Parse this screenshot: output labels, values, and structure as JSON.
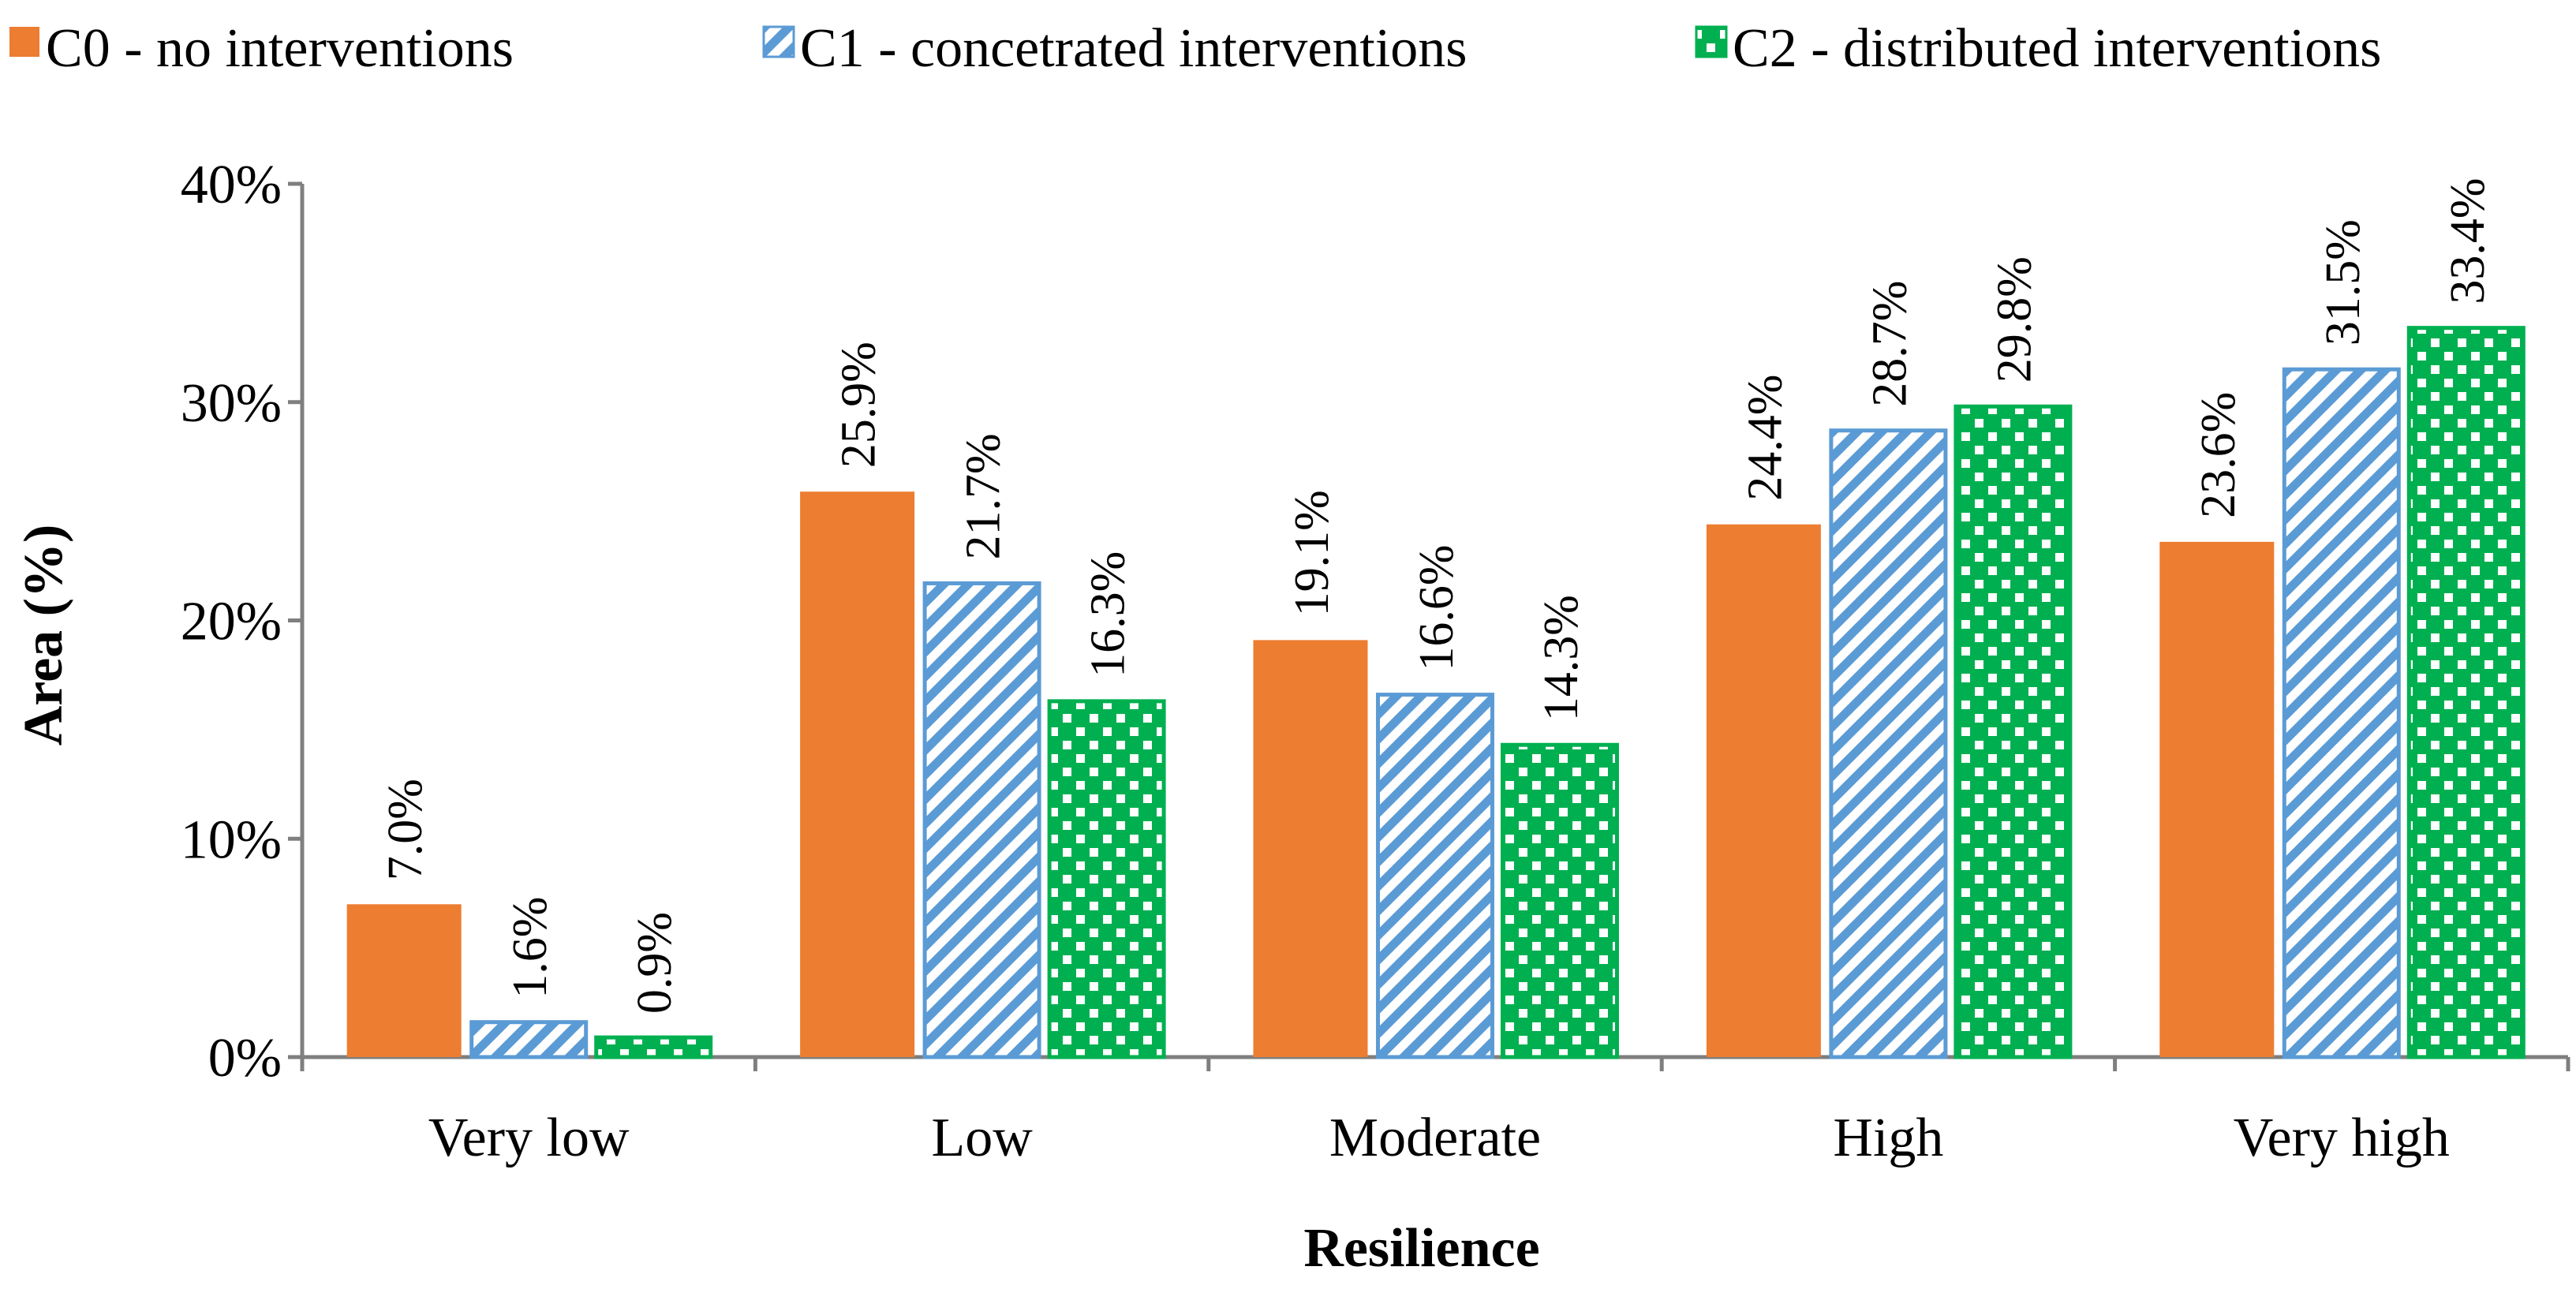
{
  "chart_data": {
    "type": "bar",
    "title": "",
    "xlabel": "Resilience",
    "ylabel": "Area (%)",
    "ylim": [
      0,
      40
    ],
    "yticks": [
      "0%",
      "10%",
      "20%",
      "30%",
      "40%"
    ],
    "grid": false,
    "legend_position": "top",
    "categories": [
      "Very low",
      "Low",
      "Moderate",
      "High",
      "Very high"
    ],
    "series": [
      {
        "name": "C0 - no interventions",
        "pattern": "solid",
        "color": "#ed7d31",
        "values": [
          7.0,
          25.9,
          19.1,
          24.4,
          23.6
        ],
        "labels": [
          "7.0%",
          "25.9%",
          "19.1%",
          "24.4%",
          "23.6%"
        ]
      },
      {
        "name": "C1 - concetrated interventions",
        "pattern": "diagonal-stripes",
        "color": "#5b9bd5",
        "values": [
          1.6,
          21.7,
          16.6,
          28.7,
          31.5
        ],
        "labels": [
          "1.6%",
          "21.7%",
          "16.6%",
          "28.7%",
          "31.5%"
        ]
      },
      {
        "name": "C2 - distributed interventions",
        "pattern": "checker-dots",
        "color": "#00b050",
        "values": [
          0.9,
          16.3,
          14.3,
          29.8,
          33.4
        ],
        "labels": [
          "0.9%",
          "16.3%",
          "14.3%",
          "29.8%",
          "33.4%"
        ]
      }
    ]
  }
}
